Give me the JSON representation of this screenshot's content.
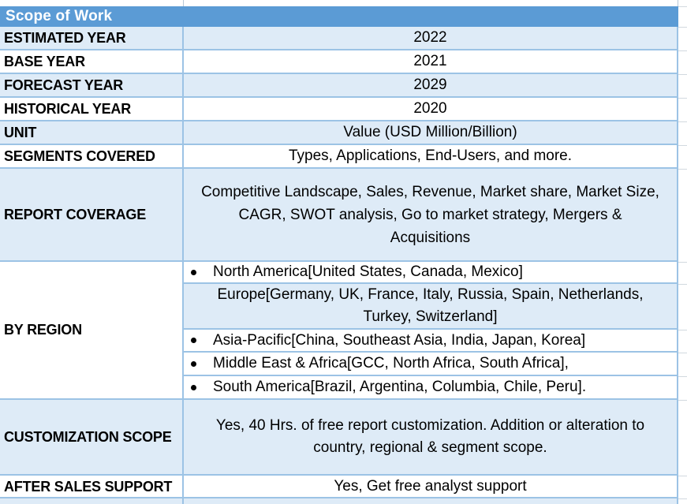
{
  "title": "Scope of Work",
  "table": {
    "rows": [
      {
        "label": "ESTIMATED YEAR",
        "value": "2022"
      },
      {
        "label": "BASE YEAR",
        "value": "2021"
      },
      {
        "label": "FORECAST YEAR",
        "value": "2029"
      },
      {
        "label": "HISTORICAL YEAR",
        "value": "2020"
      },
      {
        "label": "UNIT",
        "value": "Value (USD Million/Billion)"
      },
      {
        "label": "SEGMENTS COVERED",
        "value": "Types, Applications, End-Users, and more."
      },
      {
        "label": "REPORT COVERAGE",
        "value": "Competitive Landscape, Sales, Revenue, Market share, Market Size,\nCAGR, SWOT analysis, Go to market strategy, Mergers &\nAcquisitions"
      }
    ],
    "by_region": {
      "label": "BY REGION",
      "items": [
        {
          "text": "North America[United States, Canada, Mexico]"
        },
        {
          "text": "Europe[Germany, UK, France, Italy, Russia, Spain, Netherlands,\nTurkey, Switzerland]"
        },
        {
          "text": "Asia-Pacific[China, Southeast Asia, India, Japan, Korea]"
        },
        {
          "text": "Middle East & Africa[GCC, North Africa, South Africa],"
        },
        {
          "text": "South America[Brazil, Argentina, Columbia, Chile, Peru]."
        }
      ]
    },
    "customization": {
      "label": "CUSTOMIZATION SCOPE",
      "value": "Yes, 40 Hrs. of free report customization. Addition or alteration to\ncountry, regional & segment scope."
    },
    "after_sales": {
      "label": "AFTER SALES SUPPORT",
      "value": "Yes, Get free analyst support"
    }
  },
  "colors": {
    "header_bg": "#5B9BD5",
    "header_text": "#FFFFFF",
    "alt_row_bg": "#DEEBF7",
    "cell_border": "#9CC3E5",
    "body_text": "#000000",
    "sheet_gridline": "#D2D9DF"
  }
}
